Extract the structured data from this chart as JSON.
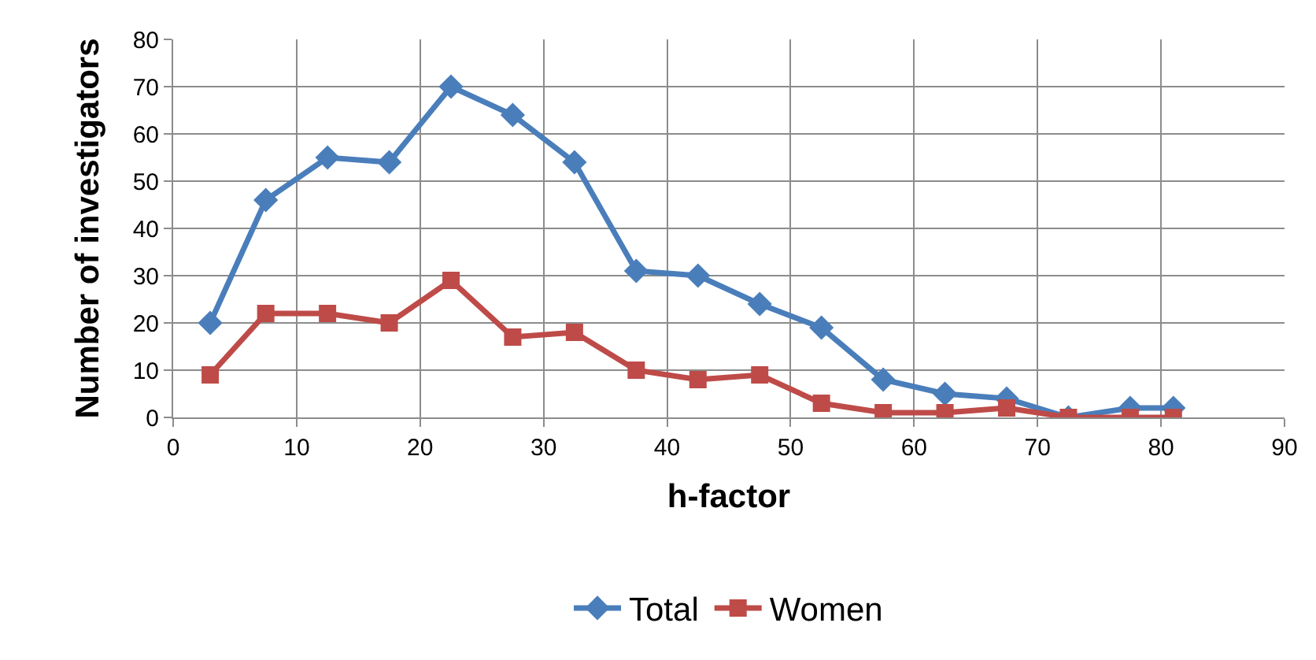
{
  "chart_data": {
    "type": "line",
    "xlabel": "h-factor",
    "ylabel": "Number of investigators",
    "x": [
      3,
      7.5,
      12.5,
      17.5,
      22.5,
      27.5,
      32.5,
      37.5,
      42.5,
      47.5,
      52.5,
      57.5,
      62.5,
      67.5,
      72.5,
      77.5,
      81
    ],
    "series": [
      {
        "name": "Total",
        "color": "#4a7ebb",
        "marker": "diamond",
        "values": [
          20,
          46,
          55,
          54,
          70,
          64,
          54,
          31,
          30,
          24,
          19,
          8,
          5,
          4,
          0,
          2,
          2
        ]
      },
      {
        "name": "Women",
        "color": "#be4b48",
        "marker": "square",
        "values": [
          9,
          22,
          22,
          20,
          29,
          17,
          18,
          10,
          8,
          9,
          3,
          1,
          1,
          2,
          0,
          0,
          0
        ]
      }
    ],
    "xlim": [
      0,
      90
    ],
    "xticks": [
      0,
      10,
      20,
      30,
      40,
      50,
      60,
      70,
      80,
      90
    ],
    "ylim": [
      0,
      80
    ],
    "yticks": [
      0,
      10,
      20,
      30,
      40,
      50,
      60,
      70,
      80
    ],
    "grid": true,
    "legend": "bottom",
    "line_style": "solid"
  }
}
